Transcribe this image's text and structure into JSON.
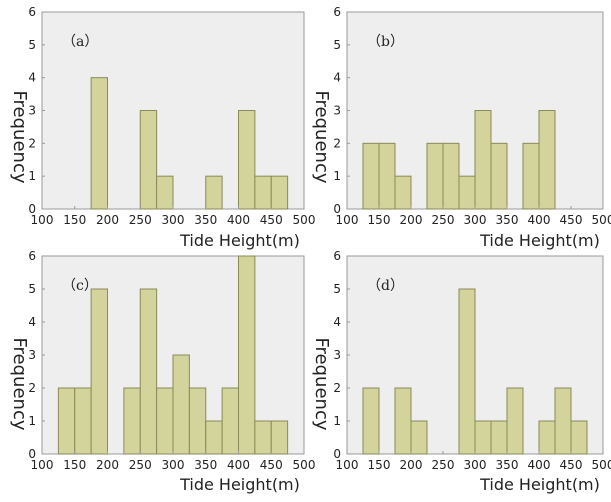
{
  "chart_data": [
    {
      "type": "bar",
      "panel_label": "（a）",
      "xlabel": "Tide Height(m)",
      "ylabel": "Frequency",
      "xlim": [
        100,
        500
      ],
      "ylim": [
        0,
        6
      ],
      "xticks": [
        "100",
        "150",
        "200",
        "250",
        "300",
        "350",
        "400",
        "450",
        "500"
      ],
      "yticks": [
        "0",
        "1",
        "2",
        "3",
        "4",
        "5",
        "6"
      ],
      "bin_width": 25,
      "bars": [
        {
          "x0": 175,
          "x1": 200,
          "value": 4
        },
        {
          "x0": 250,
          "x1": 275,
          "value": 3
        },
        {
          "x0": 275,
          "x1": 300,
          "value": 1
        },
        {
          "x0": 350,
          "x1": 375,
          "value": 1
        },
        {
          "x0": 400,
          "x1": 425,
          "value": 3
        },
        {
          "x0": 425,
          "x1": 450,
          "value": 1
        },
        {
          "x0": 450,
          "x1": 475,
          "value": 1
        }
      ]
    },
    {
      "type": "bar",
      "panel_label": "（b）",
      "xlabel": "Tide Height(m)",
      "ylabel": "Frequency",
      "xlim": [
        100,
        500
      ],
      "ylim": [
        0,
        6
      ],
      "xticks": [
        "100",
        "150",
        "200",
        "250",
        "300",
        "350",
        "400",
        "450",
        "500"
      ],
      "yticks": [
        "0",
        "1",
        "2",
        "3",
        "4",
        "5",
        "6"
      ],
      "bin_width": 25,
      "bars": [
        {
          "x0": 125,
          "x1": 150,
          "value": 2
        },
        {
          "x0": 150,
          "x1": 175,
          "value": 2
        },
        {
          "x0": 175,
          "x1": 200,
          "value": 1
        },
        {
          "x0": 225,
          "x1": 250,
          "value": 2
        },
        {
          "x0": 250,
          "x1": 275,
          "value": 2
        },
        {
          "x0": 275,
          "x1": 300,
          "value": 1
        },
        {
          "x0": 300,
          "x1": 325,
          "value": 3
        },
        {
          "x0": 325,
          "x1": 350,
          "value": 2
        },
        {
          "x0": 375,
          "x1": 400,
          "value": 2
        },
        {
          "x0": 400,
          "x1": 425,
          "value": 3
        }
      ]
    },
    {
      "type": "bar",
      "panel_label": "（c）",
      "xlabel": "Tide Height(m)",
      "ylabel": "Frequency",
      "xlim": [
        100,
        500
      ],
      "ylim": [
        0,
        6
      ],
      "xticks": [
        "100",
        "150",
        "200",
        "250",
        "300",
        "350",
        "400",
        "450",
        "500"
      ],
      "yticks": [
        "0",
        "1",
        "2",
        "3",
        "4",
        "5",
        "6"
      ],
      "bin_width": 25,
      "bars": [
        {
          "x0": 125,
          "x1": 150,
          "value": 2
        },
        {
          "x0": 150,
          "x1": 175,
          "value": 2
        },
        {
          "x0": 175,
          "x1": 200,
          "value": 5
        },
        {
          "x0": 225,
          "x1": 250,
          "value": 2
        },
        {
          "x0": 250,
          "x1": 275,
          "value": 5
        },
        {
          "x0": 275,
          "x1": 300,
          "value": 2
        },
        {
          "x0": 300,
          "x1": 325,
          "value": 3
        },
        {
          "x0": 325,
          "x1": 350,
          "value": 2
        },
        {
          "x0": 350,
          "x1": 375,
          "value": 1
        },
        {
          "x0": 375,
          "x1": 400,
          "value": 2
        },
        {
          "x0": 400,
          "x1": 425,
          "value": 6
        },
        {
          "x0": 425,
          "x1": 450,
          "value": 1
        },
        {
          "x0": 450,
          "x1": 475,
          "value": 1
        }
      ]
    },
    {
      "type": "bar",
      "panel_label": "（d）",
      "xlabel": "Tide Height(m)",
      "ylabel": "Frequency",
      "xlim": [
        100,
        500
      ],
      "ylim": [
        0,
        6
      ],
      "xticks": [
        "100",
        "150",
        "200",
        "250",
        "300",
        "350",
        "400",
        "450",
        "500"
      ],
      "yticks": [
        "0",
        "1",
        "2",
        "3",
        "4",
        "5",
        "6"
      ],
      "bin_width": 25,
      "bars": [
        {
          "x0": 125,
          "x1": 150,
          "value": 2
        },
        {
          "x0": 175,
          "x1": 200,
          "value": 2
        },
        {
          "x0": 200,
          "x1": 225,
          "value": 1
        },
        {
          "x0": 275,
          "x1": 300,
          "value": 5
        },
        {
          "x0": 300,
          "x1": 325,
          "value": 1
        },
        {
          "x0": 325,
          "x1": 350,
          "value": 1
        },
        {
          "x0": 350,
          "x1": 375,
          "value": 2
        },
        {
          "x0": 400,
          "x1": 425,
          "value": 1
        },
        {
          "x0": 425,
          "x1": 450,
          "value": 2
        },
        {
          "x0": 450,
          "x1": 475,
          "value": 1
        }
      ]
    }
  ],
  "style": {
    "bar_fill": "#d3d39c",
    "bar_stroke": "#8a8a5a",
    "plot_bg": "#eeeeee",
    "plot_border": "#9a9a9a",
    "text_color": "#222222"
  }
}
